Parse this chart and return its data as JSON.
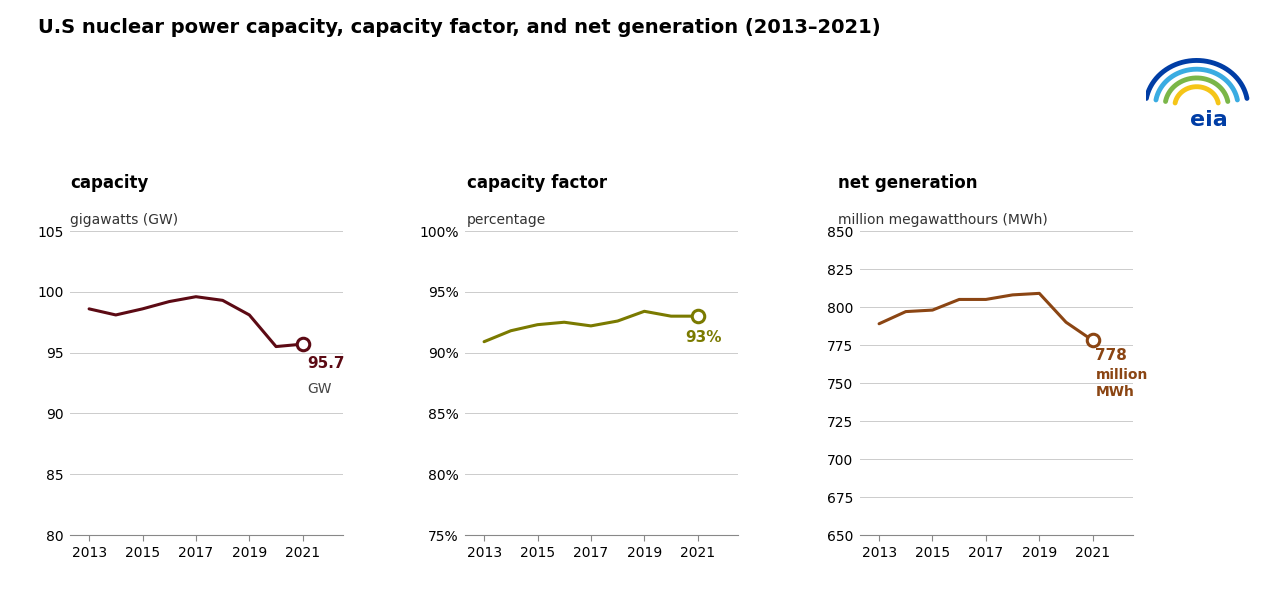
{
  "title": "U.S nuclear power capacity, capacity factor, and net generation (2013–2021)",
  "title_fontsize": 14,
  "background_color": "#ffffff",
  "panel1": {
    "label": "capacity",
    "sublabel": "gigawatts (GW)",
    "years": [
      2013,
      2014,
      2015,
      2016,
      2017,
      2018,
      2019,
      2020,
      2021
    ],
    "values": [
      98.6,
      98.1,
      98.6,
      99.2,
      99.6,
      99.3,
      98.1,
      95.5,
      95.7
    ],
    "color": "#5c0a14",
    "ylim": [
      80,
      105
    ],
    "yticks": [
      80,
      85,
      90,
      95,
      100,
      105
    ],
    "ann_value": "95.7",
    "ann_unit": "GW",
    "annotation_color": "#5c0a14"
  },
  "panel2": {
    "label": "capacity factor",
    "sublabel": "percentage",
    "years": [
      2013,
      2014,
      2015,
      2016,
      2017,
      2018,
      2019,
      2020,
      2021
    ],
    "values": [
      90.9,
      91.8,
      92.3,
      92.5,
      92.2,
      92.6,
      93.4,
      93.0,
      93.0
    ],
    "color": "#7a7a00",
    "ylim": [
      75,
      100
    ],
    "yticks": [
      75,
      80,
      85,
      90,
      95,
      100
    ],
    "ytick_labels": [
      "75%",
      "80%",
      "85%",
      "90%",
      "95%",
      "100%"
    ],
    "ann_value": "93%",
    "annotation_color": "#7a7a00"
  },
  "panel3": {
    "label": "net generation",
    "sublabel": "million megawatthours (MWh)",
    "years": [
      2013,
      2014,
      2015,
      2016,
      2017,
      2018,
      2019,
      2020,
      2021
    ],
    "values": [
      789,
      797,
      798,
      805,
      805,
      808,
      809,
      790,
      778
    ],
    "color": "#8b4513",
    "ylim": [
      650,
      850
    ],
    "yticks": [
      650,
      675,
      700,
      725,
      750,
      775,
      800,
      825,
      850
    ],
    "ann_value": "778",
    "ann_unit": "million\nMWh",
    "annotation_color": "#8b4513"
  },
  "eia_logo_colors": [
    "#f5c518",
    "#7ab648",
    "#3aace2",
    "#003da5"
  ],
  "eia_text_color": "#003da5"
}
